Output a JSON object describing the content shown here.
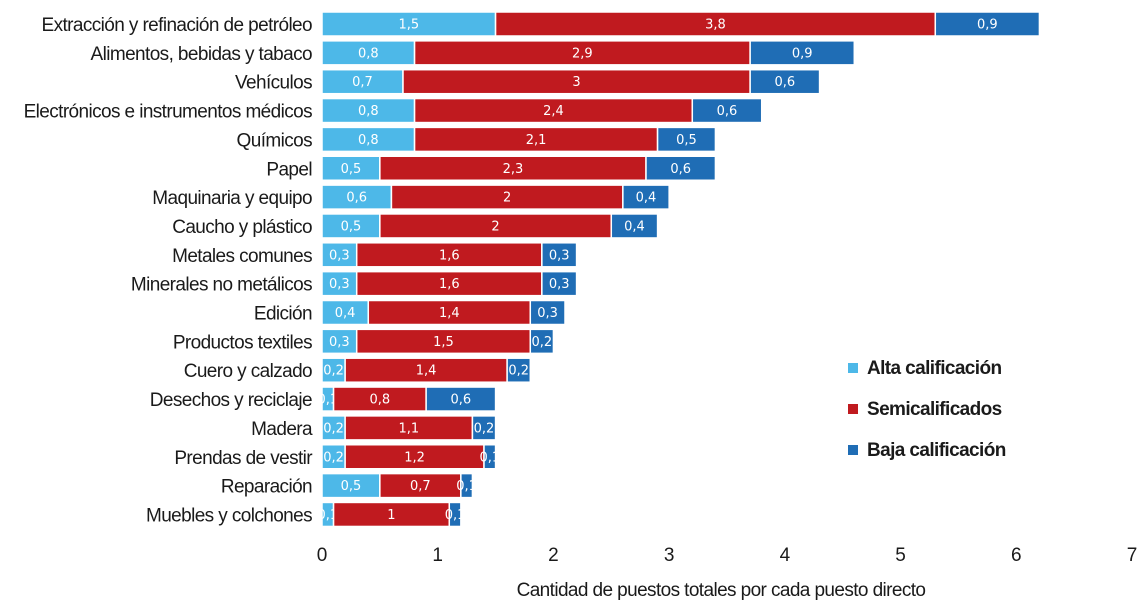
{
  "chart_data": {
    "type": "bar",
    "orientation": "horizontal",
    "stacked": true,
    "categories": [
      "Extracción y refinación de petróleo",
      "Alimentos, bebidas y tabaco",
      "Vehículos",
      "Electrónicos e instrumentos médicos",
      "Químicos",
      "Papel",
      "Maquinaria y equipo",
      "Caucho y plástico",
      "Metales comunes",
      "Minerales no metálicos",
      "Edición",
      "Productos textiles",
      "Cuero y calzado",
      "Desechos y reciclaje",
      "Madera",
      "Prendas de vestir",
      "Reparación",
      "Muebles y colchones"
    ],
    "series": [
      {
        "name": "Alta calificación",
        "color": "#4db8e8",
        "values": [
          1.5,
          0.8,
          0.7,
          0.8,
          0.8,
          0.5,
          0.6,
          0.5,
          0.3,
          0.3,
          0.4,
          0.3,
          0.2,
          0.1,
          0.2,
          0.2,
          0.5,
          0.1
        ],
        "labels": [
          "1,5",
          "0,8",
          "0,7",
          "0,8",
          "0,8",
          "0,5",
          "0,6",
          "0,5",
          "0,3",
          "0,3",
          "0,4",
          "0,3",
          "0,2",
          "0,1",
          "0,2",
          "0,2",
          "0,5",
          "0,1"
        ]
      },
      {
        "name": "Semicalificados",
        "color": "#c01a1f",
        "values": [
          3.8,
          2.9,
          3,
          2.4,
          2.1,
          2.3,
          2,
          2,
          1.6,
          1.6,
          1.4,
          1.5,
          1.4,
          0.8,
          1.1,
          1.2,
          0.7,
          1
        ],
        "labels": [
          "3,8",
          "2,9",
          "3",
          "2,4",
          "2,1",
          "2,3",
          "2",
          "2",
          "1,6",
          "1,6",
          "1,4",
          "1,5",
          "1,4",
          "0,8",
          "1,1",
          "1,2",
          "0,7",
          "1"
        ]
      },
      {
        "name": "Baja calificación",
        "color": "#1f6db5",
        "values": [
          0.9,
          0.9,
          0.6,
          0.6,
          0.5,
          0.6,
          0.4,
          0.4,
          0.3,
          0.3,
          0.3,
          0.2,
          0.2,
          0.6,
          0.2,
          0.1,
          0.1,
          0.1
        ],
        "labels": [
          "0,9",
          "0,9",
          "0,6",
          "0,6",
          "0,5",
          "0,6",
          "0,4",
          "0,4",
          "0,3",
          "0,3",
          "0,3",
          "0,2",
          "0,2",
          "0,6",
          "0,2",
          "0,1",
          "0,1",
          "0,1"
        ]
      }
    ],
    "xlabel": "Cantidad de puestos totales por cada puesto directo",
    "xlim": [
      0,
      7
    ],
    "xticks": [
      0,
      1,
      2,
      3,
      4,
      5,
      6,
      7
    ],
    "grid": false,
    "legend_position": "right"
  }
}
